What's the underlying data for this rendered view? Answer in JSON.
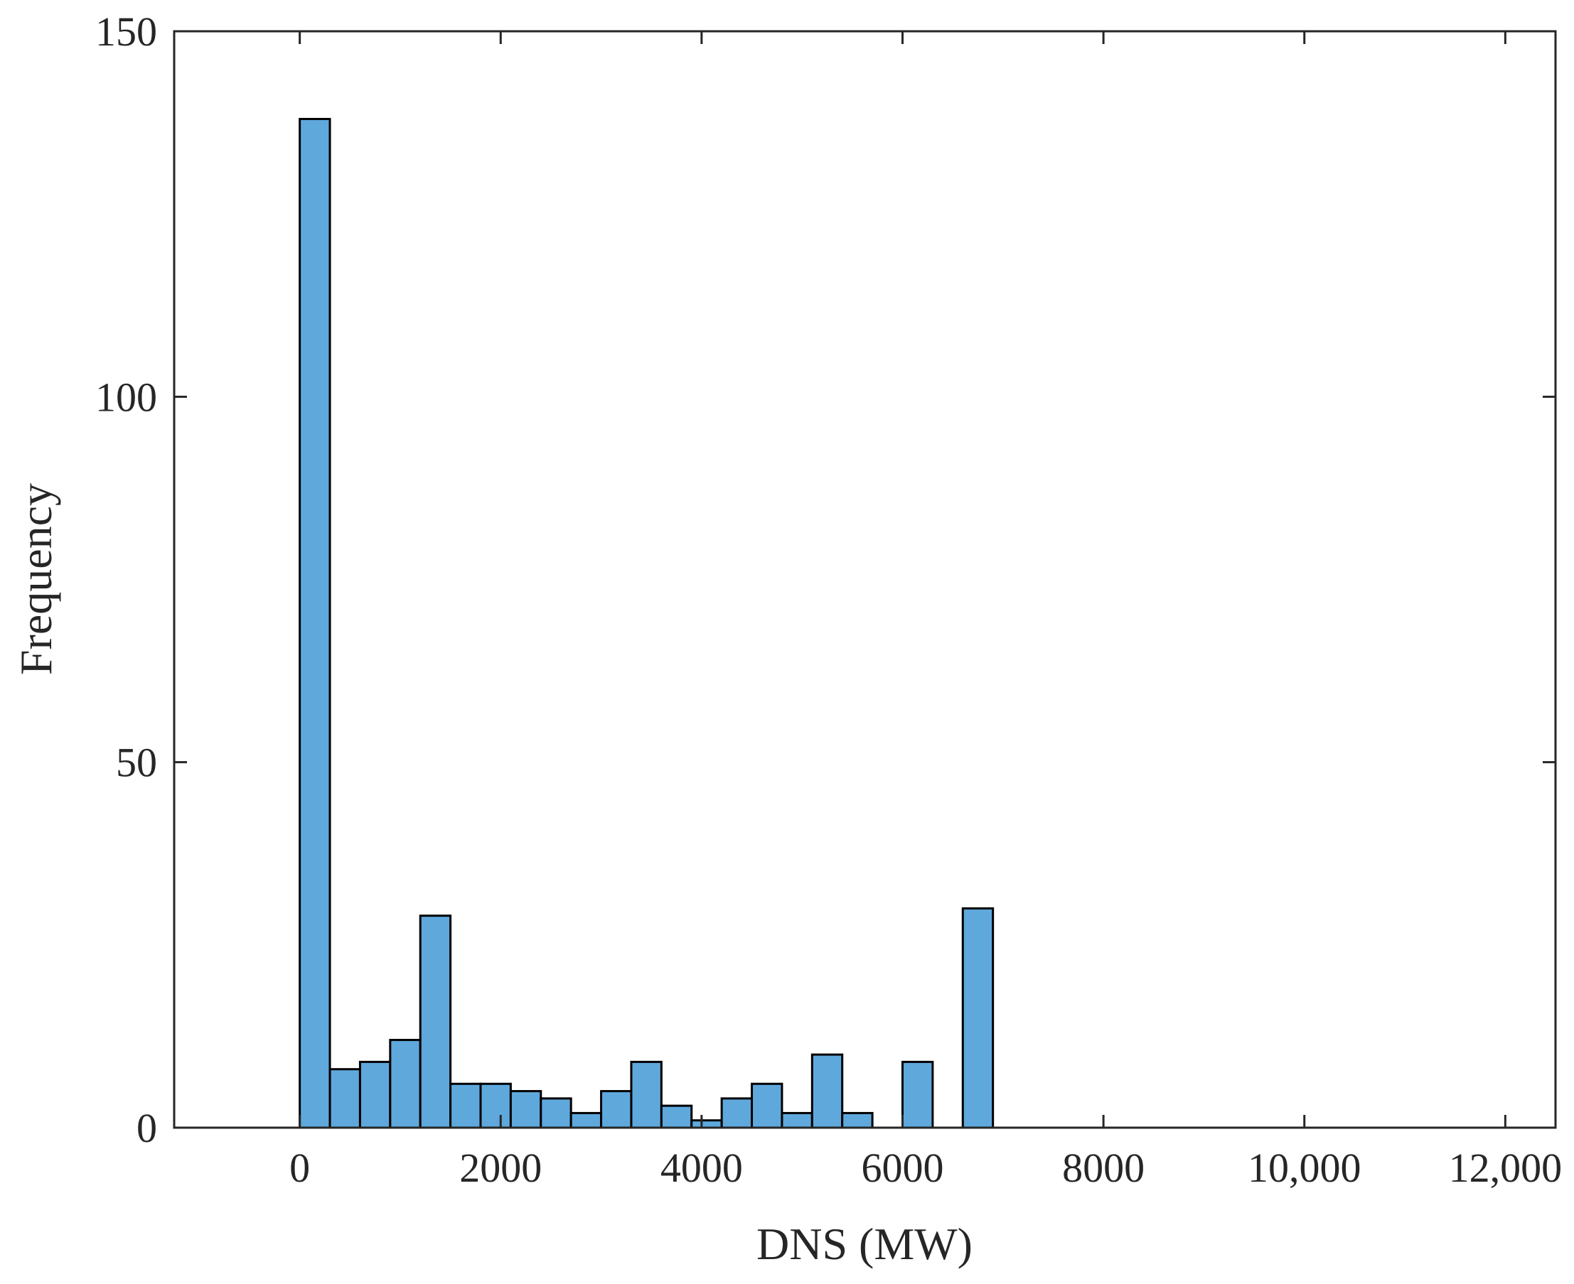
{
  "chart_data": {
    "type": "bar",
    "subtype": "histogram",
    "title": "",
    "xlabel": "DNS (MW)",
    "ylabel": "Frequency",
    "xlim": [
      -1250,
      12500
    ],
    "ylim": [
      0,
      150
    ],
    "grid": false,
    "bar_color": "#5fa8dc",
    "bar_edge_color": "#000000",
    "bin_width": 300,
    "bin_starts": [
      0,
      300,
      600,
      900,
      1200,
      1500,
      1800,
      2100,
      2400,
      2700,
      3000,
      3300,
      3600,
      3900,
      4200,
      4500,
      4800,
      5100,
      5400,
      5700,
      6000,
      6300,
      6600
    ],
    "values": [
      138,
      8,
      9,
      12,
      29,
      6,
      6,
      5,
      4,
      2,
      5,
      9,
      3,
      1,
      4,
      6,
      2,
      10,
      2,
      0,
      9,
      0,
      30
    ],
    "x_ticks": [
      0,
      2000,
      4000,
      6000,
      8000,
      10000,
      12000
    ],
    "x_tick_labels": [
      "0",
      "2000",
      "4000",
      "6000",
      "8000",
      "10,000",
      "12,000"
    ],
    "y_ticks": [
      0,
      50,
      100,
      150
    ],
    "y_tick_labels": [
      "0",
      "50",
      "100",
      "150"
    ]
  }
}
